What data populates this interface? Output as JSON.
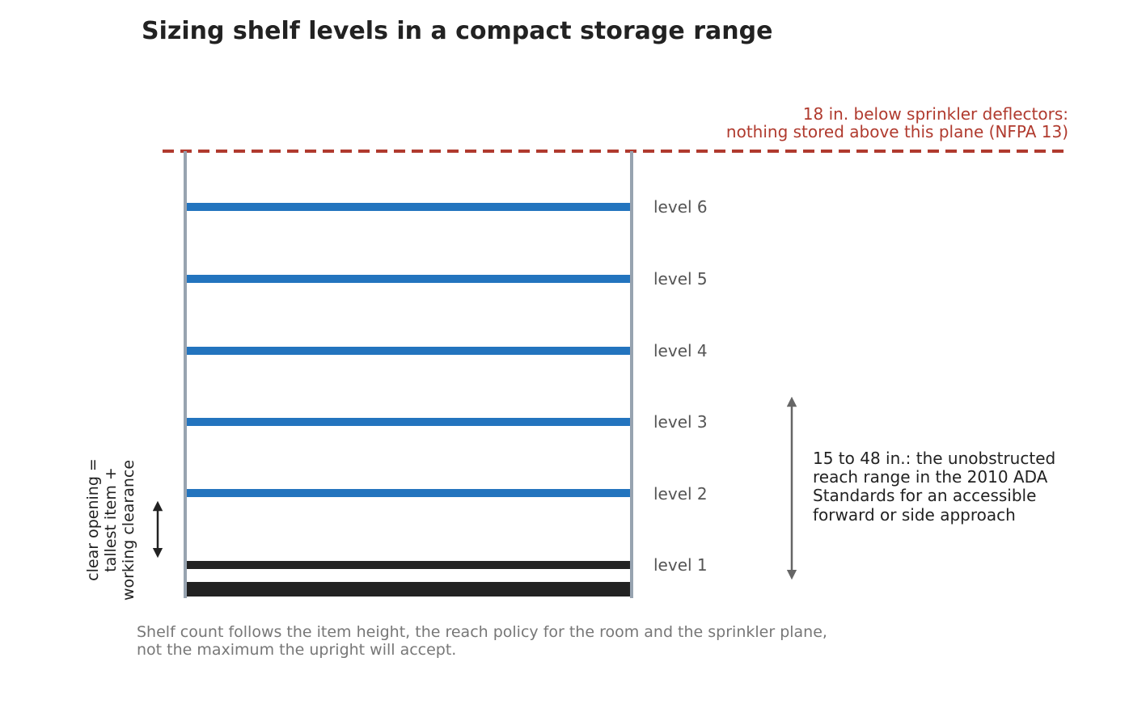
{
  "title": "Sizing shelf levels in a compact storage range",
  "sprinkler_note": {
    "lines": [
      "18 in. below sprinkler deflectors:",
      "nothing stored above this plane (NFPA 13)"
    ],
    "color": "#b03a2e"
  },
  "levels": [
    {
      "label": "level 6",
      "kind": "shelf"
    },
    {
      "label": "level 5",
      "kind": "shelf"
    },
    {
      "label": "level 4",
      "kind": "shelf"
    },
    {
      "label": "level 3",
      "kind": "shelf"
    },
    {
      "label": "level 2",
      "kind": "shelf"
    },
    {
      "label": "level 1",
      "kind": "bottom"
    }
  ],
  "colors": {
    "shelf": "#2374be",
    "bottom_shelf": "#222222",
    "upright": "#97a3b0",
    "reach_arrow": "#666666",
    "clearance_arrow": "#222222"
  },
  "clear_opening_note": {
    "lines": [
      "clear opening =",
      "tallest item +",
      "working clearance"
    ]
  },
  "reach_note": {
    "lines": [
      "15 to 48 in.: the unobstructed",
      "reach range in the 2010 ADA",
      "Standards for an accessible",
      "forward or side approach"
    ]
  },
  "caption": {
    "lines": [
      "Shelf count follows the item height, the reach policy for the room and the sprinkler plane,",
      "not the maximum the upright will accept."
    ]
  }
}
